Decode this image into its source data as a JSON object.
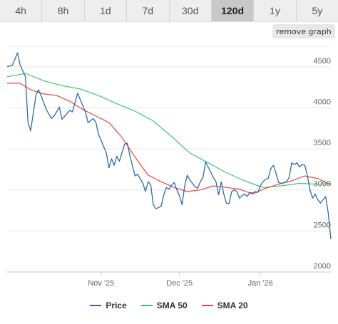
{
  "timeframe_tabs": [
    "4h",
    "8h",
    "1d",
    "7d",
    "30d",
    "120d",
    "1y",
    "5y"
  ],
  "active_tab": "120d",
  "remove_graph_label": "remove graph",
  "legend": {
    "price": "Price",
    "sma50": "SMA 50",
    "sma20": "SMA 20"
  },
  "colors": {
    "price": "#2b6ca8",
    "sma50": "#3cc86a",
    "sma20": "#e8473f",
    "grid": "#e8e8e8"
  },
  "chart_data": {
    "type": "line",
    "x_range": [
      "2025-09-26",
      "2026-01-28"
    ],
    "x_ticks": [
      {
        "date": "2025-11-01",
        "label": "Nov '25"
      },
      {
        "date": "2025-12-01",
        "label": "Dec '25"
      },
      {
        "date": "2026-01-01",
        "label": "Jan '26"
      }
    ],
    "y_ticks": [
      2000,
      2500,
      3000,
      3500,
      4000,
      4500
    ],
    "ylim": [
      2000,
      4750
    ],
    "grid": true,
    "legend_position": "bottom",
    "series": [
      {
        "name": "Price",
        "points": [
          [
            "2025-09-26",
            4500
          ],
          [
            "2025-09-28",
            4520
          ],
          [
            "2025-09-30",
            4670
          ],
          [
            "2025-10-01",
            4520
          ],
          [
            "2025-10-02",
            4450
          ],
          [
            "2025-10-03",
            4380
          ],
          [
            "2025-10-04",
            3820
          ],
          [
            "2025-10-05",
            3720
          ],
          [
            "2025-10-07",
            4150
          ],
          [
            "2025-10-08",
            4220
          ],
          [
            "2025-10-09",
            4150
          ],
          [
            "2025-10-11",
            3980
          ],
          [
            "2025-10-13",
            3870
          ],
          [
            "2025-10-14",
            3900
          ],
          [
            "2025-10-16",
            4010
          ],
          [
            "2025-10-17",
            3860
          ],
          [
            "2025-10-20",
            3970
          ],
          [
            "2025-10-21",
            3950
          ],
          [
            "2025-10-23",
            4180
          ],
          [
            "2025-10-24",
            4100
          ],
          [
            "2025-10-26",
            3950
          ],
          [
            "2025-10-27",
            3820
          ],
          [
            "2025-10-29",
            3870
          ],
          [
            "2025-10-30",
            3820
          ],
          [
            "2025-10-31",
            3680
          ],
          [
            "2025-11-03",
            3450
          ],
          [
            "2025-11-04",
            3270
          ],
          [
            "2025-11-05",
            3380
          ],
          [
            "2025-11-06",
            3300
          ],
          [
            "2025-11-07",
            3410
          ],
          [
            "2025-11-08",
            3350
          ],
          [
            "2025-11-10",
            3560
          ],
          [
            "2025-11-11",
            3570
          ],
          [
            "2025-11-12",
            3420
          ],
          [
            "2025-11-14",
            3170
          ],
          [
            "2025-11-15",
            3190
          ],
          [
            "2025-11-17",
            3080
          ],
          [
            "2025-11-18",
            2980
          ],
          [
            "2025-11-19",
            3100
          ],
          [
            "2025-11-20",
            3060
          ],
          [
            "2025-11-21",
            2820
          ],
          [
            "2025-11-22",
            2770
          ],
          [
            "2025-11-24",
            2800
          ],
          [
            "2025-11-25",
            2940
          ],
          [
            "2025-11-26",
            3030
          ],
          [
            "2025-11-27",
            3010
          ],
          [
            "2025-11-28",
            3060
          ],
          [
            "2025-11-29",
            3090
          ],
          [
            "2025-11-30",
            3000
          ],
          [
            "2025-12-01",
            2930
          ],
          [
            "2025-12-02",
            2820
          ],
          [
            "2025-12-03",
            3050
          ],
          [
            "2025-12-04",
            3180
          ],
          [
            "2025-12-05",
            3120
          ],
          [
            "2025-12-07",
            3040
          ],
          [
            "2025-12-08",
            3020
          ],
          [
            "2025-12-09",
            3100
          ],
          [
            "2025-12-10",
            3150
          ],
          [
            "2025-12-11",
            3340
          ],
          [
            "2025-12-12",
            3280
          ],
          [
            "2025-12-14",
            3150
          ],
          [
            "2025-12-15",
            3100
          ],
          [
            "2025-12-16",
            2940
          ],
          [
            "2025-12-17",
            3100
          ],
          [
            "2025-12-18",
            2950
          ],
          [
            "2025-12-19",
            2840
          ],
          [
            "2025-12-20",
            2830
          ],
          [
            "2025-12-21",
            2980
          ],
          [
            "2025-12-22",
            3000
          ],
          [
            "2025-12-23",
            2980
          ],
          [
            "2025-12-24",
            2900
          ],
          [
            "2025-12-25",
            2930
          ],
          [
            "2025-12-26",
            2950
          ],
          [
            "2025-12-27",
            2920
          ],
          [
            "2025-12-28",
            2970
          ],
          [
            "2025-12-29",
            2960
          ],
          [
            "2025-12-30",
            2980
          ],
          [
            "2025-12-31",
            2970
          ],
          [
            "2026-01-01",
            3050
          ],
          [
            "2026-01-02",
            3100
          ],
          [
            "2026-01-03",
            3130
          ],
          [
            "2026-01-04",
            3140
          ],
          [
            "2026-01-05",
            3260
          ],
          [
            "2026-01-06",
            3300
          ],
          [
            "2026-01-07",
            3200
          ],
          [
            "2026-01-08",
            3090
          ],
          [
            "2026-01-09",
            3080
          ],
          [
            "2026-01-10",
            3090
          ],
          [
            "2026-01-11",
            3100
          ],
          [
            "2026-01-12",
            3150
          ],
          [
            "2026-01-13",
            3330
          ],
          [
            "2026-01-14",
            3310
          ],
          [
            "2026-01-15",
            3330
          ],
          [
            "2026-01-16",
            3280
          ],
          [
            "2026-01-17",
            3310
          ],
          [
            "2026-01-18",
            3300
          ],
          [
            "2026-01-19",
            3180
          ],
          [
            "2026-01-20",
            3000
          ],
          [
            "2026-01-21",
            2900
          ],
          [
            "2026-01-22",
            2950
          ],
          [
            "2026-01-23",
            2880
          ],
          [
            "2026-01-24",
            2840
          ],
          [
            "2026-01-25",
            2880
          ],
          [
            "2026-01-26",
            2920
          ],
          [
            "2026-01-27",
            2720
          ],
          [
            "2026-01-28",
            2400
          ]
        ]
      },
      {
        "name": "SMA 50",
        "points": [
          [
            "2025-09-26",
            4380
          ],
          [
            "2025-09-30",
            4400
          ],
          [
            "2025-10-03",
            4420
          ],
          [
            "2025-10-10",
            4330
          ],
          [
            "2025-10-17",
            4270
          ],
          [
            "2025-10-24",
            4230
          ],
          [
            "2025-10-31",
            4150
          ],
          [
            "2025-11-07",
            4050
          ],
          [
            "2025-11-14",
            3960
          ],
          [
            "2025-11-21",
            3840
          ],
          [
            "2025-11-28",
            3650
          ],
          [
            "2025-12-05",
            3450
          ],
          [
            "2025-12-12",
            3330
          ],
          [
            "2025-12-19",
            3210
          ],
          [
            "2025-12-26",
            3110
          ],
          [
            "2026-01-02",
            3030
          ],
          [
            "2026-01-09",
            3050
          ],
          [
            "2026-01-16",
            3080
          ],
          [
            "2026-01-23",
            3070
          ],
          [
            "2026-01-28",
            3080
          ]
        ]
      },
      {
        "name": "SMA 20",
        "points": [
          [
            "2025-09-26",
            4300
          ],
          [
            "2025-10-01",
            4300
          ],
          [
            "2025-10-05",
            4220
          ],
          [
            "2025-10-10",
            4170
          ],
          [
            "2025-10-15",
            4150
          ],
          [
            "2025-10-20",
            4080
          ],
          [
            "2025-10-25",
            3980
          ],
          [
            "2025-10-30",
            3900
          ],
          [
            "2025-11-04",
            3820
          ],
          [
            "2025-11-09",
            3640
          ],
          [
            "2025-11-14",
            3400
          ],
          [
            "2025-11-19",
            3180
          ],
          [
            "2025-11-24",
            3100
          ],
          [
            "2025-11-29",
            3030
          ],
          [
            "2025-12-04",
            2980
          ],
          [
            "2025-12-09",
            3000
          ],
          [
            "2025-12-14",
            3050
          ],
          [
            "2025-12-19",
            3030
          ],
          [
            "2025-12-24",
            3010
          ],
          [
            "2025-12-29",
            2950
          ],
          [
            "2026-01-03",
            3020
          ],
          [
            "2026-01-08",
            3070
          ],
          [
            "2026-01-13",
            3110
          ],
          [
            "2026-01-18",
            3170
          ],
          [
            "2026-01-23",
            3140
          ],
          [
            "2026-01-28",
            3060
          ]
        ]
      }
    ]
  }
}
